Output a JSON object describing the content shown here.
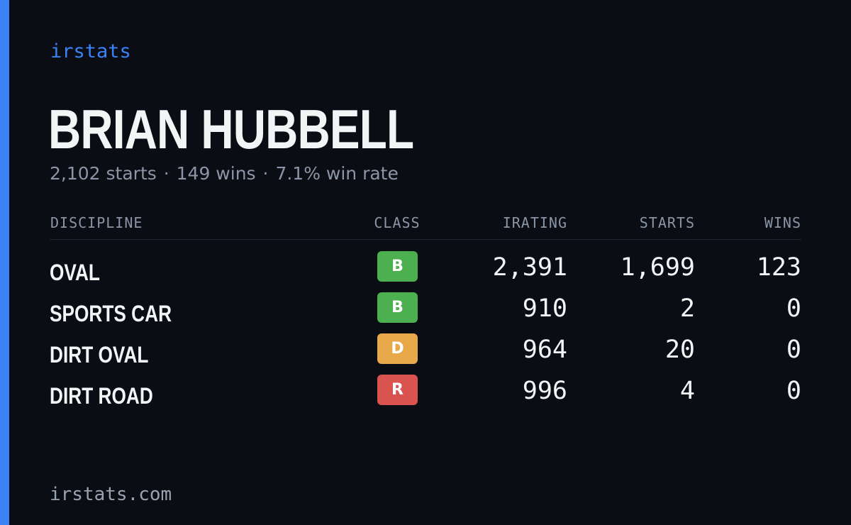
{
  "brand": "irstats",
  "driver": {
    "name": "BRIAN HUBBELL",
    "summary": {
      "starts": "2,102 starts",
      "wins": "149 wins",
      "win_rate": "7.1% win rate",
      "separator": "·"
    }
  },
  "table": {
    "headers": {
      "discipline": "DISCIPLINE",
      "class": "CLASS",
      "irating": "IRATING",
      "starts": "STARTS",
      "wins": "WINS"
    },
    "rows": [
      {
        "discipline": "OVAL",
        "class": "B",
        "class_color": "#4caf50",
        "irating": "2,391",
        "starts": "1,699",
        "wins": "123"
      },
      {
        "discipline": "SPORTS CAR",
        "class": "B",
        "class_color": "#4caf50",
        "irating": "910",
        "starts": "2",
        "wins": "0"
      },
      {
        "discipline": "DIRT OVAL",
        "class": "D",
        "class_color": "#e8a94a",
        "irating": "964",
        "starts": "20",
        "wins": "0"
      },
      {
        "discipline": "DIRT ROAD",
        "class": "R",
        "class_color": "#d9534f",
        "irating": "996",
        "starts": "4",
        "wins": "0"
      }
    ]
  },
  "footer": "irstats.com",
  "colors": {
    "accent": "#3b82f6",
    "background": "#0a0d14"
  }
}
